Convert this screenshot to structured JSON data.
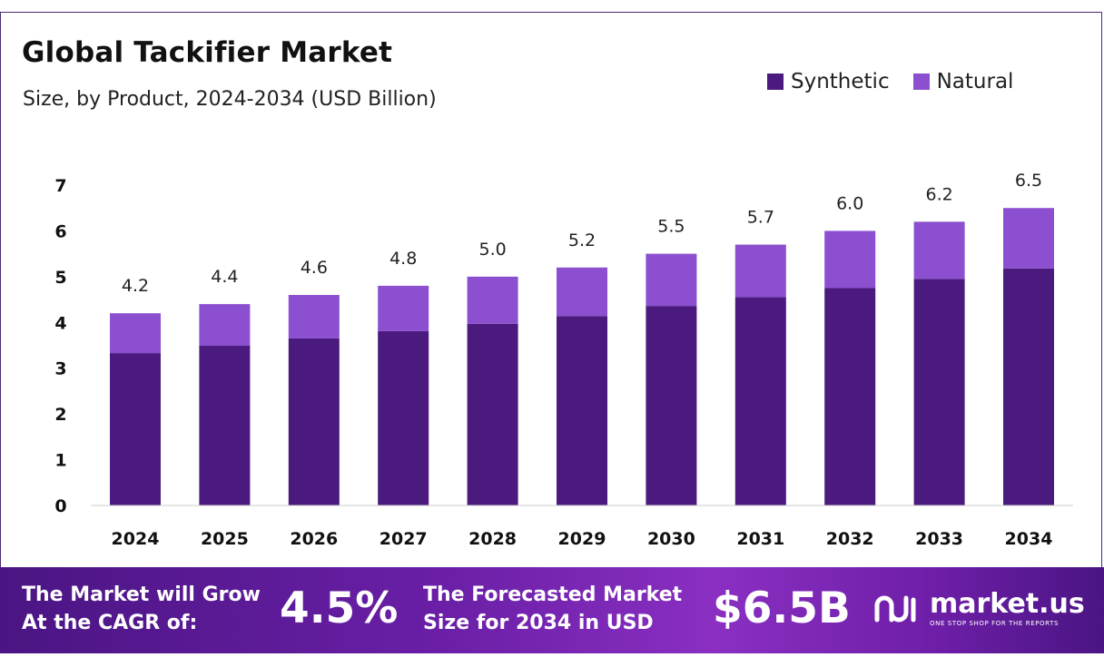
{
  "chart_data": {
    "type": "bar",
    "stacked": true,
    "title": "Global Tackifier Market",
    "subtitle": "Size, by Product, 2024-2034 (USD Billion)",
    "categories": [
      "2024",
      "2025",
      "2026",
      "2027",
      "2028",
      "2029",
      "2030",
      "2031",
      "2032",
      "2033",
      "2034"
    ],
    "series": [
      {
        "name": "Synthetic",
        "color": "#4b1a7e",
        "values": [
          3.33,
          3.49,
          3.65,
          3.81,
          3.97,
          4.14,
          4.36,
          4.55,
          4.75,
          4.95,
          5.18
        ]
      },
      {
        "name": "Natural",
        "color": "#8b4fcf",
        "values": [
          0.87,
          0.91,
          0.95,
          0.99,
          1.03,
          1.06,
          1.14,
          1.15,
          1.25,
          1.25,
          1.32
        ]
      }
    ],
    "totals_labels": [
      "4.2",
      "4.4",
      "4.6",
      "4.8",
      "5.0",
      "5.2",
      "5.5",
      "5.7",
      "6.0",
      "6.2",
      "6.5"
    ],
    "totals": [
      4.2,
      4.4,
      4.6,
      4.8,
      5.0,
      5.2,
      5.5,
      5.7,
      6.0,
      6.2,
      6.5
    ],
    "ylim": [
      0,
      7
    ],
    "yticks": [
      0,
      1,
      2,
      3,
      4,
      5,
      6,
      7
    ],
    "grid": false,
    "legend": "top-right"
  },
  "banner": {
    "cagr_text_line1": "The Market will Grow",
    "cagr_text_line2": "At the CAGR of:",
    "cagr_value": "4.5%",
    "forecast_text_line1": "The Forecasted Market",
    "forecast_text_line2": "Size for 2034 in USD",
    "forecast_value": "$6.5B",
    "logo_name": "market.us",
    "logo_tagline": "ONE STOP SHOP FOR THE REPORTS",
    "logo_icon": "market-us-logo-icon"
  }
}
